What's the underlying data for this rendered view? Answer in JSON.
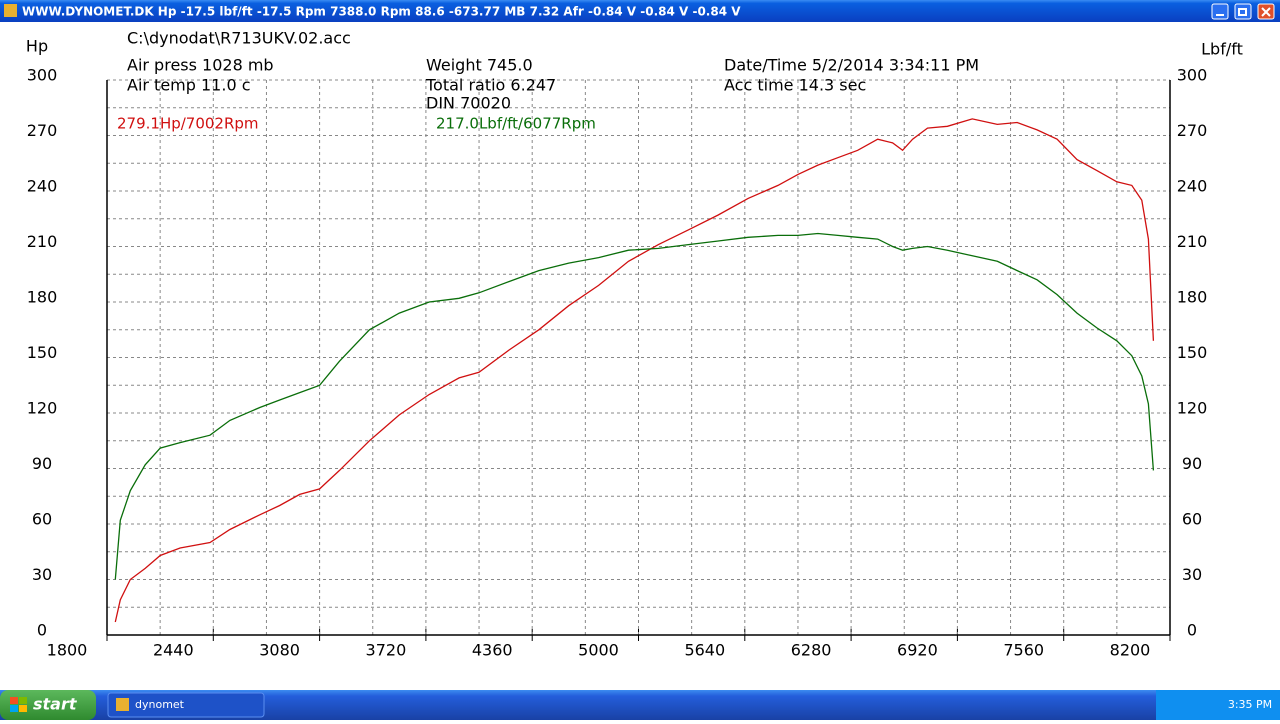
{
  "window": {
    "title": "WWW.DYNOMET.DK Hp -17.5 lbf/ft -17.5 Rpm 7388.0 Rpm 88.6   -673.77 MB 7.32 Afr -0.84 V -0.84 V -0.84 V"
  },
  "info": {
    "file": "C:\\dynodat\\R713UKV.02.acc",
    "air_press": "Air press  1028 mb",
    "air_temp": "Air temp  11.0 c",
    "weight": "Weight   745.0",
    "total_ratio": "Total ratio 6.247",
    "din": "DIN 70020",
    "date_time": "Date/Time  5/2/2014 3:34:11 PM",
    "acc_time": "Acc time   14.3 sec"
  },
  "chart_data": {
    "type": "line",
    "ylabel": "Hp",
    "y2label": "Lbf/ft",
    "annotations": [
      "279.1Hp/7002Rpm",
      "217.0Lbf/ft/6077Rpm"
    ],
    "x": [
      1850,
      1880,
      1940,
      2030,
      2120,
      2240,
      2420,
      2540,
      2720,
      2840,
      2960,
      3080,
      3200,
      3380,
      3560,
      3740,
      3920,
      4040,
      4220,
      4400,
      4580,
      4760,
      4940,
      5120,
      5300,
      5480,
      5660,
      5840,
      5960,
      6080,
      6200,
      6320,
      6440,
      6530,
      6590,
      6650,
      6740,
      6860,
      7010,
      7160,
      7280,
      7400,
      7520,
      7640,
      7760,
      7880,
      7970,
      8030,
      8070,
      8100
    ],
    "series": [
      {
        "name": "Hp",
        "color": "#d01010",
        "values": [
          7,
          19,
          30,
          36,
          43,
          47,
          50,
          57,
          65,
          70,
          76,
          79,
          89,
          105,
          119,
          130,
          139,
          142,
          154,
          165,
          178,
          189,
          202,
          211,
          219,
          227,
          236,
          243,
          249,
          254,
          258,
          262,
          268,
          266,
          262,
          268,
          274,
          275,
          279,
          276,
          277,
          273,
          268,
          257,
          251,
          245,
          243,
          235,
          214,
          159
        ]
      },
      {
        "name": "Lbf/ft",
        "color": "#0a6e0a",
        "axis": "y2",
        "values": [
          30,
          62,
          78,
          92,
          101,
          104,
          108,
          116,
          123,
          127,
          131,
          135,
          148,
          165,
          174,
          180,
          182,
          185,
          191,
          197,
          201,
          204,
          208,
          209,
          211,
          213,
          215,
          216,
          216,
          217,
          216,
          215,
          214,
          210,
          208,
          209,
          210,
          208,
          205,
          202,
          197,
          192,
          184,
          174,
          166,
          159,
          151,
          140,
          125,
          89
        ]
      }
    ],
    "xlim": [
      1800,
      8200
    ],
    "xticks": [
      1800,
      2440,
      3080,
      3720,
      4360,
      5000,
      5640,
      6280,
      6920,
      7560,
      8200
    ],
    "ylim": [
      0,
      300
    ],
    "yticks": [
      0,
      30,
      60,
      90,
      120,
      150,
      180,
      210,
      240,
      270,
      300
    ],
    "y2lim": [
      0,
      300
    ],
    "y2ticks": [
      0,
      30,
      60,
      90,
      120,
      150,
      180,
      210,
      240,
      270,
      300
    ],
    "grid": true
  },
  "taskbar": {
    "start": "start",
    "app": "dynomet",
    "clock": "3:35 PM"
  }
}
